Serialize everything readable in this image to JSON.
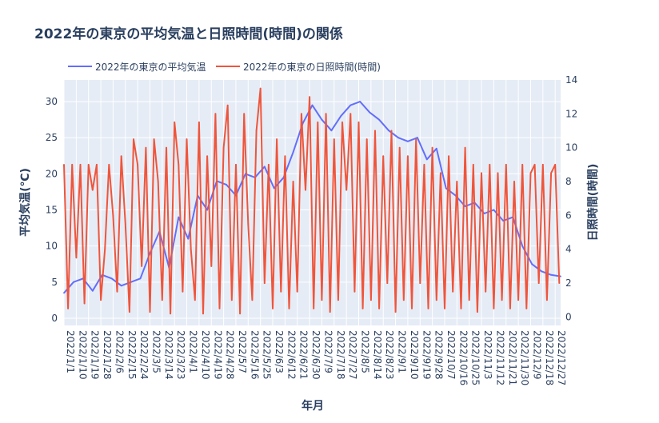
{
  "colors": {
    "plot_bg": "#e5ecf6",
    "grid": "#ffffff",
    "text": "#2a3f5f",
    "series_temp": "#636efa",
    "series_sun": "#ef553b"
  },
  "chart_data": {
    "type": "line",
    "title": "2022年の東京の平均気温と日照時間(時間)の関係",
    "xlabel": "年月",
    "ylabel_left": "平均気温(℃)",
    "ylabel_right": "日照時間(時間)",
    "legend_position": "top-left",
    "grid": true,
    "x_range": [
      "2022-01-01",
      "2022-12-31"
    ],
    "x_tick_labels": [
      "2022/1/1",
      "2022/1/10",
      "2022/1/19",
      "2022/1/28",
      "2022/2/6",
      "2022/2/15",
      "2022/2/24",
      "2022/3/5",
      "2022/3/14",
      "2022/3/23",
      "2022/4/1",
      "2022/4/10",
      "2022/4/19",
      "2022/4/28",
      "2022/5/7",
      "2022/5/16",
      "2022/5/25",
      "2022/6/3",
      "2022/6/12",
      "2022/6/21",
      "2022/6/30",
      "2022/7/9",
      "2022/7/18",
      "2022/7/27",
      "2022/8/5",
      "2022/8/14",
      "2022/8/23",
      "2022/9/1",
      "2022/9/10",
      "2022/9/19",
      "2022/9/28",
      "2022/10/7",
      "2022/10/16",
      "2022/10/25",
      "2022/11/3",
      "2022/11/12",
      "2022/11/21",
      "2022/11/30",
      "2022/12/9",
      "2022/12/18",
      "2022/12/27"
    ],
    "y_left": {
      "range": [
        -1,
        33
      ],
      "ticks": [
        0,
        5,
        10,
        15,
        20,
        25,
        30
      ]
    },
    "y_right": {
      "range": [
        -0.5,
        14
      ],
      "ticks": [
        0,
        2,
        4,
        6,
        8,
        10,
        12,
        14
      ]
    },
    "series": [
      {
        "name": "2022年の東京の平均気温",
        "axis": "left",
        "color": "#636efa",
        "x": [
          "2022-01-01",
          "2022-01-08",
          "2022-01-15",
          "2022-01-22",
          "2022-01-29",
          "2022-02-05",
          "2022-02-12",
          "2022-02-19",
          "2022-02-26",
          "2022-03-05",
          "2022-03-12",
          "2022-03-19",
          "2022-03-26",
          "2022-04-02",
          "2022-04-09",
          "2022-04-16",
          "2022-04-23",
          "2022-04-30",
          "2022-05-07",
          "2022-05-14",
          "2022-05-21",
          "2022-05-28",
          "2022-06-04",
          "2022-06-11",
          "2022-06-18",
          "2022-06-25",
          "2022-07-02",
          "2022-07-09",
          "2022-07-16",
          "2022-07-23",
          "2022-07-30",
          "2022-08-06",
          "2022-08-13",
          "2022-08-20",
          "2022-08-27",
          "2022-09-03",
          "2022-09-10",
          "2022-09-17",
          "2022-09-24",
          "2022-10-01",
          "2022-10-08",
          "2022-10-15",
          "2022-10-22",
          "2022-10-29",
          "2022-11-05",
          "2022-11-12",
          "2022-11-19",
          "2022-11-26",
          "2022-12-03",
          "2022-12-10",
          "2022-12-17",
          "2022-12-24",
          "2022-12-31"
        ],
        "values": [
          3.5,
          5.0,
          5.5,
          3.8,
          6.0,
          5.5,
          4.5,
          5.0,
          5.5,
          9.0,
          12.0,
          7.0,
          14.0,
          11.0,
          17.0,
          15.0,
          19.0,
          18.5,
          17.0,
          20.0,
          19.5,
          21.0,
          18.0,
          19.5,
          23.0,
          27.0,
          29.5,
          27.5,
          26.0,
          28.0,
          29.5,
          30.0,
          28.5,
          27.5,
          26.0,
          25.0,
          24.5,
          25.0,
          22.0,
          23.5,
          18.0,
          17.0,
          15.5,
          16.0,
          14.5,
          15.0,
          13.5,
          14.0,
          10.0,
          7.5,
          6.5,
          6.0,
          5.8
        ]
      },
      {
        "name": "2022年の東京の日照時間(時間)",
        "axis": "right",
        "color": "#ef553b",
        "x": [
          "2022-01-01",
          "2022-01-04",
          "2022-01-07",
          "2022-01-10",
          "2022-01-13",
          "2022-01-16",
          "2022-01-19",
          "2022-01-22",
          "2022-01-25",
          "2022-01-28",
          "2022-01-31",
          "2022-02-03",
          "2022-02-06",
          "2022-02-09",
          "2022-02-12",
          "2022-02-15",
          "2022-02-18",
          "2022-02-21",
          "2022-02-24",
          "2022-02-27",
          "2022-03-02",
          "2022-03-05",
          "2022-03-08",
          "2022-03-11",
          "2022-03-14",
          "2022-03-17",
          "2022-03-20",
          "2022-03-23",
          "2022-03-26",
          "2022-03-29",
          "2022-04-01",
          "2022-04-04",
          "2022-04-07",
          "2022-04-10",
          "2022-04-13",
          "2022-04-16",
          "2022-04-19",
          "2022-04-22",
          "2022-04-25",
          "2022-04-28",
          "2022-05-01",
          "2022-05-04",
          "2022-05-07",
          "2022-05-10",
          "2022-05-13",
          "2022-05-16",
          "2022-05-19",
          "2022-05-22",
          "2022-05-25",
          "2022-05-28",
          "2022-05-31",
          "2022-06-03",
          "2022-06-06",
          "2022-06-09",
          "2022-06-12",
          "2022-06-15",
          "2022-06-18",
          "2022-06-21",
          "2022-06-24",
          "2022-06-27",
          "2022-06-30",
          "2022-07-03",
          "2022-07-06",
          "2022-07-09",
          "2022-07-12",
          "2022-07-15",
          "2022-07-18",
          "2022-07-21",
          "2022-07-24",
          "2022-07-27",
          "2022-07-30",
          "2022-08-02",
          "2022-08-05",
          "2022-08-08",
          "2022-08-11",
          "2022-08-14",
          "2022-08-17",
          "2022-08-20",
          "2022-08-23",
          "2022-08-26",
          "2022-08-29",
          "2022-09-01",
          "2022-09-04",
          "2022-09-07",
          "2022-09-10",
          "2022-09-13",
          "2022-09-16",
          "2022-09-19",
          "2022-09-22",
          "2022-09-25",
          "2022-09-28",
          "2022-10-01",
          "2022-10-04",
          "2022-10-07",
          "2022-10-10",
          "2022-10-13",
          "2022-10-16",
          "2022-10-19",
          "2022-10-22",
          "2022-10-25",
          "2022-10-28",
          "2022-10-31",
          "2022-11-03",
          "2022-11-06",
          "2022-11-09",
          "2022-11-12",
          "2022-11-15",
          "2022-11-18",
          "2022-11-21",
          "2022-11-24",
          "2022-11-27",
          "2022-11-30",
          "2022-12-03",
          "2022-12-06",
          "2022-12-09",
          "2022-12-12",
          "2022-12-15",
          "2022-12-18",
          "2022-12-21",
          "2022-12-24",
          "2022-12-27",
          "2022-12-30"
        ],
        "values": [
          9.0,
          0.5,
          9.0,
          3.5,
          9.0,
          0.8,
          9.0,
          7.5,
          9.0,
          1.0,
          4.0,
          9.0,
          6.0,
          1.5,
          9.5,
          5.5,
          0.3,
          10.5,
          9.0,
          3.0,
          10.0,
          0.3,
          10.5,
          8.0,
          1.0,
          10.0,
          0.2,
          11.5,
          9.0,
          1.5,
          10.5,
          4.0,
          1.0,
          11.5,
          0.2,
          9.5,
          3.0,
          12.0,
          0.5,
          10.0,
          12.5,
          1.0,
          9.0,
          0.2,
          12.0,
          5.5,
          1.0,
          11.0,
          13.5,
          2.0,
          9.0,
          0.5,
          10.5,
          1.5,
          9.5,
          0.5,
          8.0,
          1.5,
          12.0,
          7.5,
          13.0,
          0.5,
          11.5,
          1.0,
          12.0,
          0.3,
          10.5,
          1.0,
          11.5,
          7.5,
          12.0,
          1.5,
          11.5,
          0.5,
          10.5,
          1.0,
          11.0,
          0.5,
          9.5,
          2.0,
          11.0,
          0.3,
          10.0,
          1.0,
          9.5,
          0.5,
          10.5,
          2.0,
          9.0,
          0.5,
          10.0,
          1.0,
          8.5,
          0.5,
          9.5,
          1.5,
          8.0,
          0.5,
          10.0,
          1.0,
          9.0,
          0.3,
          8.5,
          1.5,
          9.0,
          0.5,
          8.5,
          1.0,
          9.0,
          0.5,
          8.0,
          1.0,
          9.0,
          0.5,
          8.5,
          9.0,
          2.0,
          9.0,
          1.0,
          8.5,
          9.0,
          2.0
        ]
      }
    ]
  }
}
